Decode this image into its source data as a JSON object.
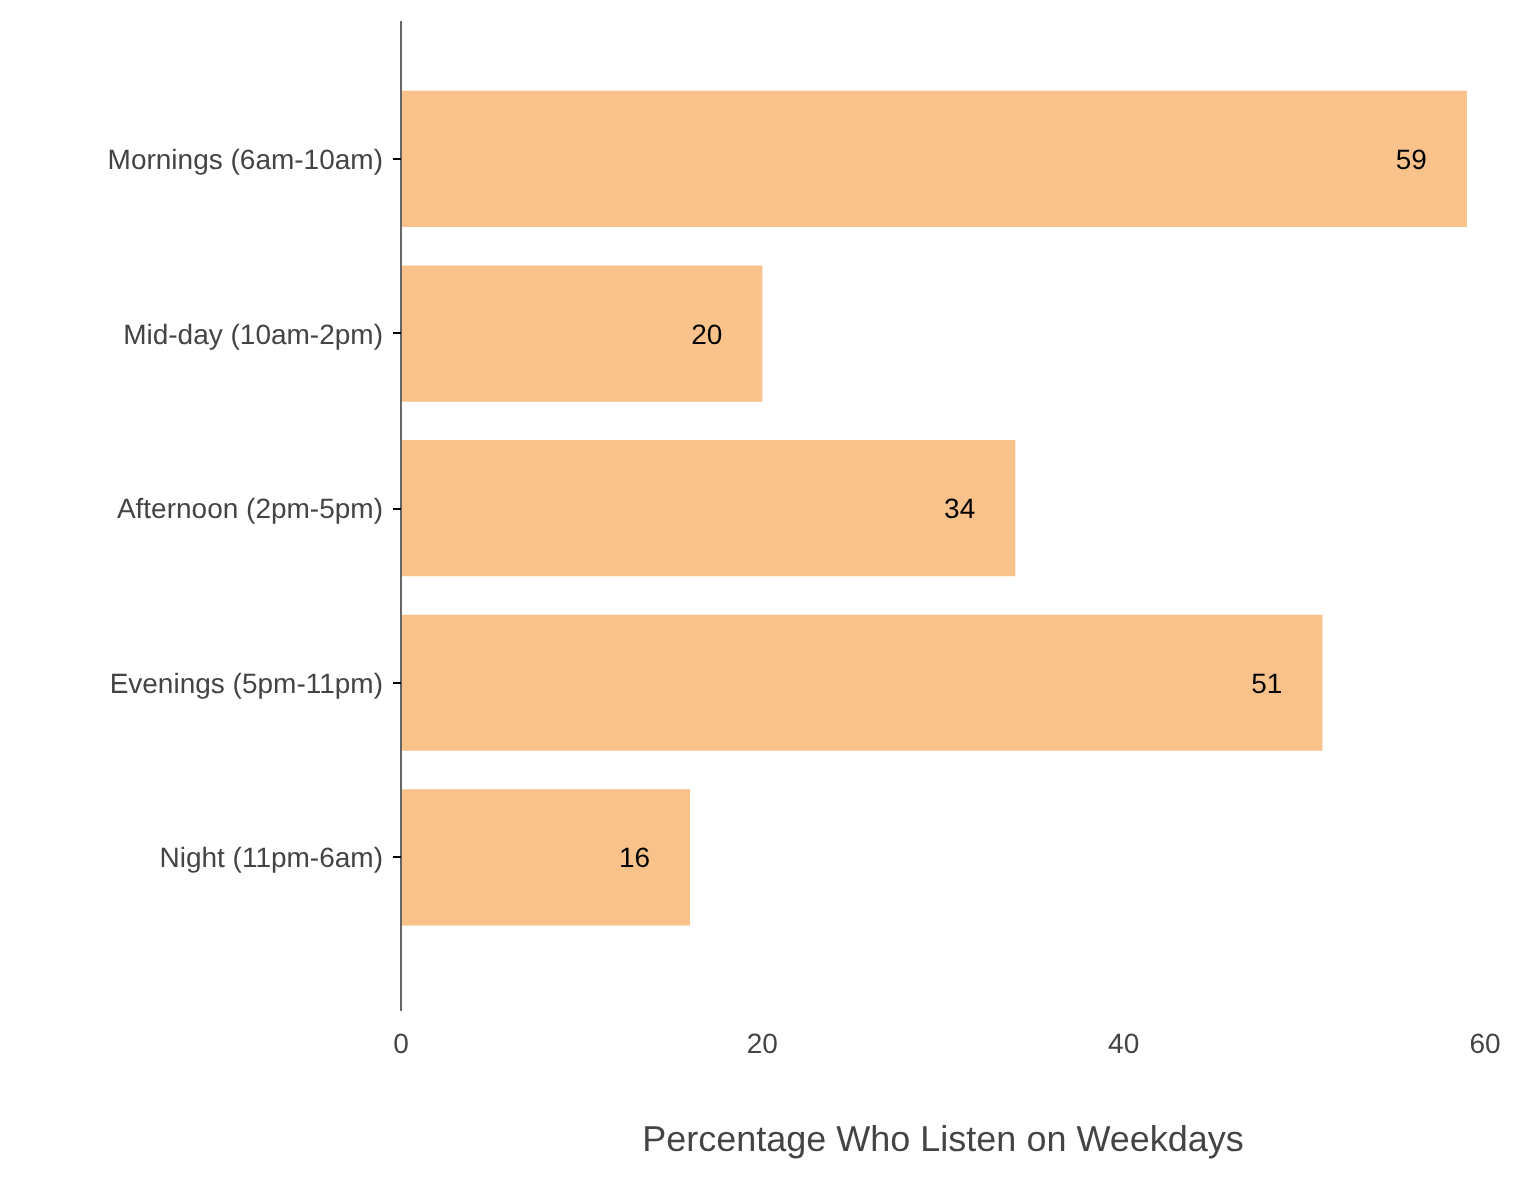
{
  "chart_data": {
    "type": "bar",
    "orientation": "horizontal",
    "xlabel": "Percentage Who Listen on Weekdays",
    "categories": [
      "Mornings (6am-10am)",
      "Mid-day (10am-2pm)",
      "Afternoon (2pm-5pm)",
      "Evenings (5pm-11pm)",
      "Night (11pm-6am)"
    ],
    "values": [
      59,
      20,
      34,
      51,
      16
    ],
    "color": "#f8c28a",
    "xlim": [
      0,
      60
    ],
    "xticks": [
      0,
      20,
      40,
      60
    ],
    "data_labels": true,
    "grid": false
  }
}
